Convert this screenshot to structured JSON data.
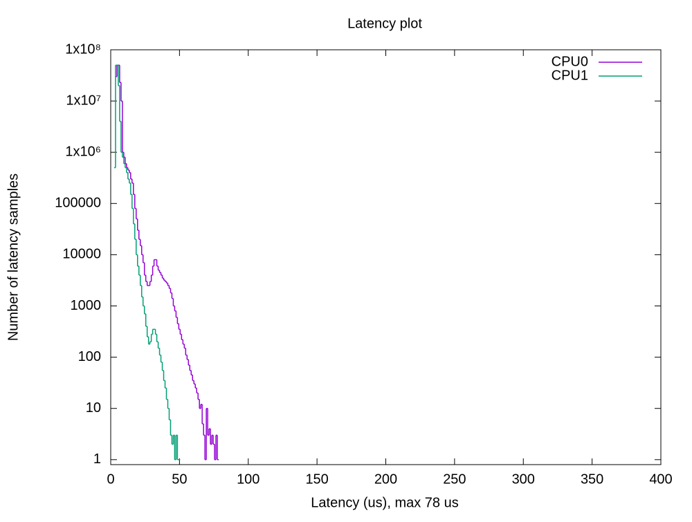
{
  "chart_data": {
    "type": "step",
    "title": "Latency plot",
    "x_label": "Latency (us), max 78 us",
    "y_label": "Number of latency samples",
    "xlim": [
      0,
      400
    ],
    "xticks": [
      0,
      50,
      100,
      150,
      200,
      250,
      300,
      350,
      400
    ],
    "ylim": [
      0.8,
      100000000
    ],
    "log_y": true,
    "yticks": [
      1,
      10,
      100,
      1000,
      10000,
      100000,
      {
        "value": 1000000,
        "label": "1x10⁶"
      },
      {
        "value": 10000000,
        "label": "1x10⁷"
      },
      {
        "value": 100000000,
        "label": "1x10⁸"
      }
    ],
    "legend": "top-right",
    "x": [
      3,
      4,
      5,
      6,
      7,
      8,
      9,
      10,
      11,
      12,
      13,
      14,
      15,
      16,
      17,
      18,
      19,
      20,
      21,
      22,
      23,
      24,
      25,
      26,
      27,
      28,
      29,
      30,
      31,
      32,
      33,
      34,
      35,
      36,
      37,
      38,
      39,
      40,
      41,
      42,
      43,
      44,
      45,
      46,
      47,
      48,
      49,
      50,
      51,
      52,
      53,
      54,
      55,
      56,
      57,
      58,
      59,
      60,
      61,
      62,
      63,
      64,
      65,
      66,
      67,
      68,
      69,
      70,
      71,
      72,
      73,
      74,
      75,
      76,
      77,
      78
    ],
    "series": [
      {
        "name": "CPU0",
        "color": "#9400d3",
        "values": [
          null,
          30000000,
          50000000,
          50000000,
          23000000,
          10000000,
          1000000,
          800000,
          600000,
          500000,
          450000,
          400000,
          300000,
          250000,
          150000,
          80000,
          50000,
          30000,
          20000,
          15000,
          10000,
          7000,
          4000,
          3000,
          2500,
          2500,
          3000,
          4000,
          6000,
          8000,
          8000,
          6000,
          5000,
          4500,
          4000,
          3500,
          3200,
          3000,
          2800,
          2500,
          2200,
          1800,
          1400,
          1000,
          800,
          600,
          450,
          350,
          280,
          220,
          180,
          150,
          110,
          90,
          70,
          55,
          45,
          35,
          30,
          25,
          20,
          15,
          10,
          12,
          5,
          3,
          1,
          10,
          3,
          4,
          2,
          3,
          2,
          1,
          3,
          1
        ]
      },
      {
        "name": "CPU1",
        "color": "#009e73",
        "values": [
          500000,
          50000000,
          50000000,
          20000000,
          4000000,
          1000000,
          800000,
          600000,
          500000,
          400000,
          300000,
          250000,
          150000,
          80000,
          40000,
          20000,
          10000,
          6000,
          4000,
          2500,
          1500,
          1000,
          700,
          400,
          250,
          180,
          200,
          280,
          350,
          350,
          280,
          200,
          150,
          110,
          80,
          55,
          35,
          25,
          15,
          10,
          6,
          3,
          2,
          3,
          1,
          3,
          1,
          1,
          null,
          null,
          null,
          null,
          null,
          null,
          null,
          null,
          null,
          null,
          null,
          null,
          null,
          null,
          null,
          null,
          null,
          null,
          null,
          null,
          null,
          null,
          null,
          null,
          null,
          null,
          null,
          null
        ]
      }
    ]
  }
}
